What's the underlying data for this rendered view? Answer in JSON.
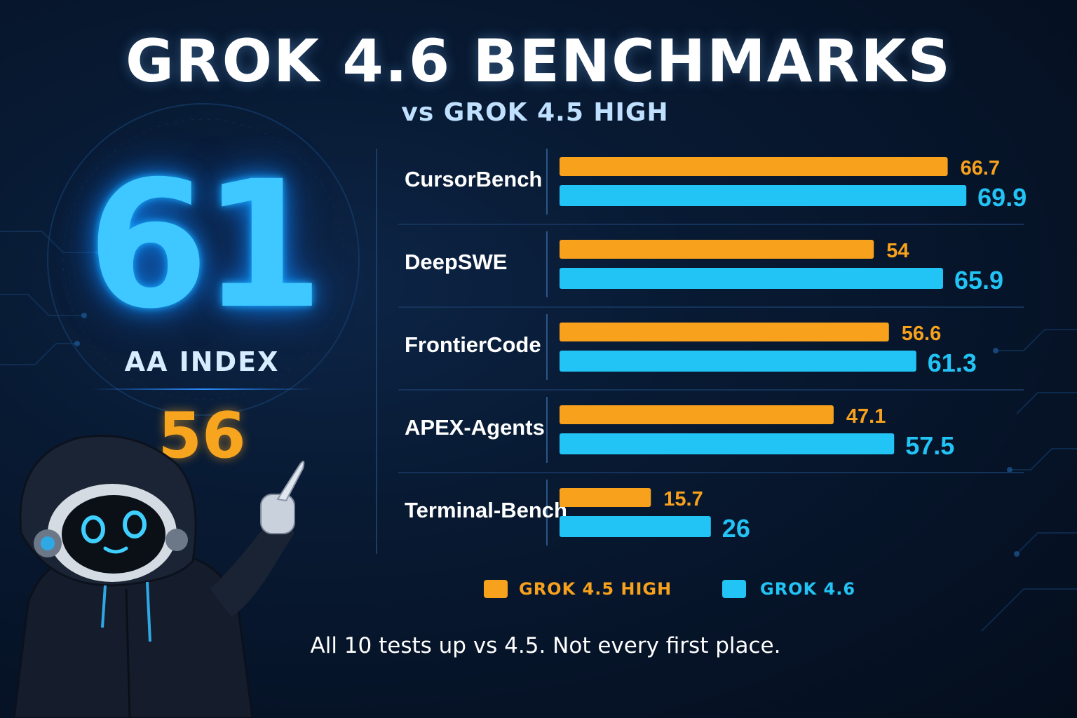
{
  "title": "GROK 4.6 BENCHMARKS",
  "subtitle": "vs GROK 4.5 HIGH",
  "aa_index": {
    "new_value": "61",
    "label": "AA INDEX",
    "old_value": "56"
  },
  "legend": {
    "old_label": "GROK 4.5 HIGH",
    "new_label": "GROK 4.6"
  },
  "caption": "All 10 tests up vs 4.5. Not every first place.",
  "colors": {
    "old": "#f7a11c",
    "new": "#22c3f5",
    "background": "#061327"
  },
  "chart_data": {
    "type": "bar",
    "orientation": "horizontal",
    "categories": [
      "CursorBench",
      "DeepSWE",
      "FrontierCode",
      "APEX-Agents",
      "Terminal-Bench"
    ],
    "series": [
      {
        "name": "GROK 4.5 HIGH",
        "values": [
          66.7,
          54,
          56.6,
          47.1,
          15.7
        ]
      },
      {
        "name": "GROK 4.6",
        "values": [
          69.9,
          65.9,
          61.3,
          57.5,
          26
        ]
      }
    ],
    "value_labels": {
      "old": [
        "66.7",
        "54",
        "56.6",
        "47.1",
        "15.7"
      ],
      "new": [
        "69.9",
        "65.9",
        "61.3",
        "57.5",
        "26"
      ]
    },
    "xlim": [
      0,
      75
    ],
    "legend_position": "bottom"
  },
  "robot_icon": "hooded-robot-mascot-icon"
}
